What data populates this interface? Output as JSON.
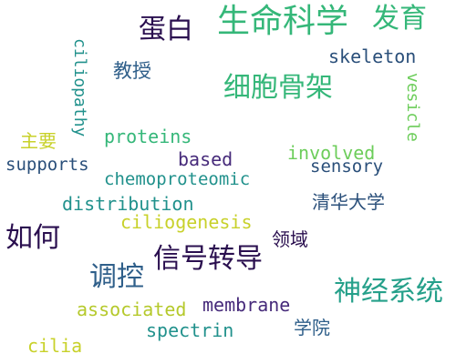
{
  "words": {
    "life_science": "生命科学",
    "development": "发育",
    "protein_zh": "蛋白",
    "skeleton": "skeleton",
    "professor": "教授",
    "cytoskeleton": "细胞骨架",
    "ciliopathy": "ciliopathy",
    "vesicle": "vesicle",
    "main": "主要",
    "proteins": "proteins",
    "based": "based",
    "involved": "involved",
    "supports": "supports",
    "sensory": "sensory",
    "chemoproteomic": "chemoproteomic",
    "distribution": "distribution",
    "tsinghua": "清华大学",
    "ciliogenesis": "ciliogenesis",
    "how": "如何",
    "field": "领域",
    "signal_transduction": "信号转导",
    "regulation": "调控",
    "nervous_system": "神经系统",
    "associated": "associated",
    "membrane": "membrane",
    "spectrin": "spectrin",
    "school": "学院",
    "cilia": "cilia"
  },
  "colors": {
    "dark": "#2a0f4f",
    "purple": "#462a7a",
    "blue": "#2f5f8a",
    "teal": "#21918c",
    "green": "#35b779",
    "lime": "#6ccd5a",
    "yellow": "#c8d12a"
  }
}
